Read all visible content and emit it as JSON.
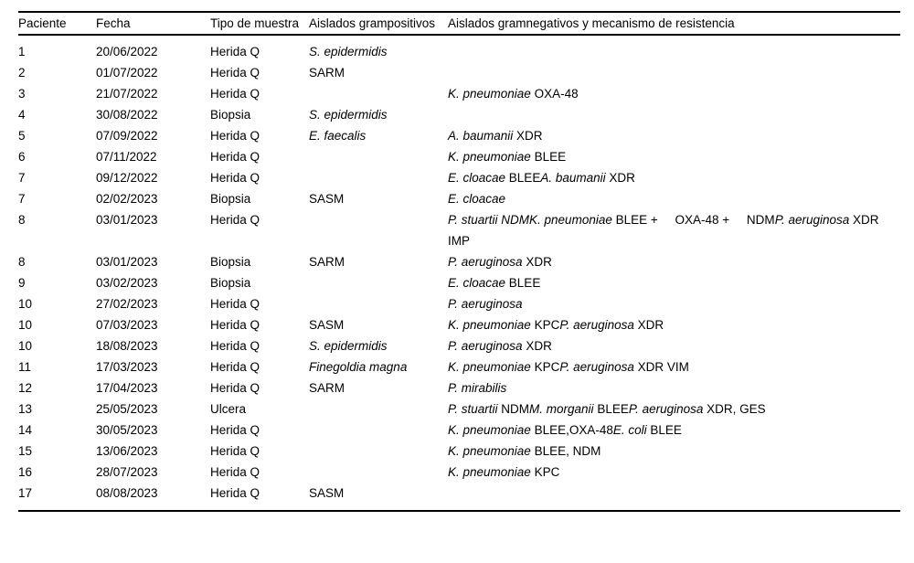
{
  "colors": {
    "text": "#000000",
    "background": "#ffffff",
    "rule": "#000000"
  },
  "table": {
    "columns": [
      {
        "key": "paciente",
        "label": "Paciente"
      },
      {
        "key": "fecha",
        "label": "Fecha"
      },
      {
        "key": "tipo",
        "label": "Tipo de muestra"
      },
      {
        "key": "grampositivos",
        "label": "Aislados grampositivos"
      },
      {
        "key": "gramnegativos",
        "label": "Aislados gramnegativos y mecanismo de resistencia"
      }
    ],
    "rows": [
      {
        "paciente": "1",
        "fecha": "20/06/2022",
        "tipo": "Herida Q",
        "grampositivos": [
          {
            "t": "S. epidermidis",
            "i": true
          }
        ],
        "gramnegativos": []
      },
      {
        "paciente": "2",
        "fecha": "01/07/2022",
        "tipo": "Herida Q",
        "grampositivos": [
          {
            "t": "SARM"
          }
        ],
        "gramnegativos": []
      },
      {
        "paciente": "3",
        "fecha": "21/07/2022",
        "tipo": "Herida Q",
        "grampositivos": [],
        "gramnegativos": [
          {
            "t": "K. pneumoniae",
            "i": true
          },
          {
            "t": " OXA-48"
          }
        ]
      },
      {
        "paciente": "4",
        "fecha": "30/08/2022",
        "tipo": "Biopsia",
        "grampositivos": [
          {
            "t": "S. epidermidis",
            "i": true
          }
        ],
        "gramnegativos": []
      },
      {
        "paciente": "5",
        "fecha": "07/09/2022",
        "tipo": "Herida Q",
        "grampositivos": [
          {
            "t": "E. faecalis",
            "i": true
          }
        ],
        "gramnegativos": [
          {
            "t": "A. baumanii",
            "i": true
          },
          {
            "t": " XDR"
          }
        ]
      },
      {
        "paciente": "6",
        "fecha": "07/11/2022",
        "tipo": "Herida Q",
        "grampositivos": [],
        "gramnegativos": [
          {
            "t": "K. pneumoniae",
            "i": true
          },
          {
            "t": " BLEE"
          }
        ]
      },
      {
        "paciente": "7",
        "fecha": "09/12/2022",
        "tipo": "Herida Q",
        "grampositivos": [],
        "gramnegativos": [
          {
            "t": "E. cloacae",
            "i": true
          },
          {
            "t": " BLEE"
          },
          {
            "t": "A. baumanii",
            "i": true
          },
          {
            "t": " XDR"
          }
        ]
      },
      {
        "paciente": "7",
        "fecha": "02/02/2023",
        "tipo": "Biopsia",
        "grampositivos": [
          {
            "t": "SASM"
          }
        ],
        "gramnegativos": [
          {
            "t": "E. cloacae",
            "i": true
          }
        ]
      },
      {
        "paciente": "8",
        "fecha": "03/01/2023",
        "tipo": "Herida Q",
        "grampositivos": [],
        "gramnegativos": [
          {
            "t": "P. stuartii NDM",
            "i": true
          },
          {
            "t": "K. pneumoniae",
            "i": true
          },
          {
            "t": " BLEE +     OXA-48 +     NDM"
          },
          {
            "t": "P. aeruginosa",
            "i": true
          },
          {
            "t": " XDR IMP"
          }
        ]
      },
      {
        "paciente": "8",
        "fecha": "03/01/2023",
        "tipo": "Biopsia",
        "grampositivos": [
          {
            "t": "SARM"
          }
        ],
        "gramnegativos": [
          {
            "t": "P. aeruginosa",
            "i": true
          },
          {
            "t": " XDR"
          }
        ]
      },
      {
        "paciente": "9",
        "fecha": "03/02/2023",
        "tipo": "Biopsia",
        "grampositivos": [],
        "gramnegativos": [
          {
            "t": "E. cloacae",
            "i": true
          },
          {
            "t": " BLEE"
          }
        ]
      },
      {
        "paciente": "10",
        "fecha": "27/02/2023",
        "tipo": "Herida Q",
        "grampositivos": [],
        "gramnegativos": [
          {
            "t": "P. aeruginosa",
            "i": true
          }
        ]
      },
      {
        "paciente": "10",
        "fecha": "07/03/2023",
        "tipo": "Herida Q",
        "grampositivos": [
          {
            "t": "SASM"
          }
        ],
        "gramnegativos": [
          {
            "t": "K. pneumoniae",
            "i": true
          },
          {
            "t": " KPC"
          },
          {
            "t": "P. aeruginosa",
            "i": true
          },
          {
            "t": " XDR"
          }
        ]
      },
      {
        "paciente": "10",
        "fecha": "18/08/2023",
        "tipo": "Herida Q",
        "grampositivos": [
          {
            "t": "S. epidermidis",
            "i": true
          }
        ],
        "gramnegativos": [
          {
            "t": "P. aeruginosa",
            "i": true
          },
          {
            "t": " XDR"
          }
        ]
      },
      {
        "paciente": "11",
        "fecha": "17/03/2023",
        "tipo": "Herida Q",
        "grampositivos": [
          {
            "t": "Finegoldia magna",
            "i": true
          }
        ],
        "gramnegativos": [
          {
            "t": "K. pneumoniae",
            "i": true
          },
          {
            "t": " KPC"
          },
          {
            "t": "P. aeruginosa",
            "i": true
          },
          {
            "t": " XDR VIM"
          }
        ]
      },
      {
        "paciente": "12",
        "fecha": "17/04/2023",
        "tipo": "Herida Q",
        "grampositivos": [
          {
            "t": "SARM"
          }
        ],
        "gramnegativos": [
          {
            "t": "P. mirabilis",
            "i": true
          }
        ]
      },
      {
        "paciente": "13",
        "fecha": "25/05/2023",
        "tipo": "Ulcera",
        "grampositivos": [],
        "gramnegativos": [
          {
            "t": "P. stuartii",
            "i": true
          },
          {
            "t": " NDM"
          },
          {
            "t": "M. morganii",
            "i": true
          },
          {
            "t": " BLEE"
          },
          {
            "t": "P. aeruginosa",
            "i": true
          },
          {
            "t": " XDR, GES"
          }
        ]
      },
      {
        "paciente": "14",
        "fecha": "30/05/2023",
        "tipo": "Herida Q",
        "grampositivos": [],
        "gramnegativos": [
          {
            "t": "K. pneumoniae",
            "i": true
          },
          {
            "t": " BLEE,OXA-48"
          },
          {
            "t": "E. coli",
            "i": true
          },
          {
            "t": " BLEE"
          }
        ]
      },
      {
        "paciente": "15",
        "fecha": "13/06/2023",
        "tipo": "Herida Q",
        "grampositivos": [],
        "gramnegativos": [
          {
            "t": "K. pneumoniae",
            "i": true
          },
          {
            "t": " BLEE, NDM"
          }
        ]
      },
      {
        "paciente": "16",
        "fecha": "28/07/2023",
        "tipo": "Herida Q",
        "grampositivos": [],
        "gramnegativos": [
          {
            "t": "K. pneumoniae",
            "i": true
          },
          {
            "t": " KPC"
          }
        ]
      },
      {
        "paciente": "17",
        "fecha": "08/08/2023",
        "tipo": "Herida Q",
        "grampositivos": [
          {
            "t": "SASM"
          }
        ],
        "gramnegativos": []
      }
    ]
  }
}
